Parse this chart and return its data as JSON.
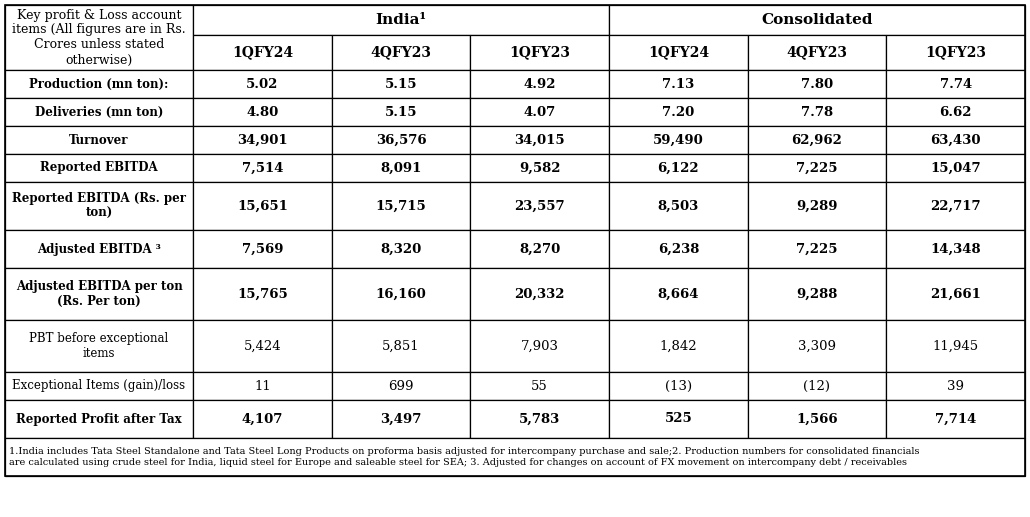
{
  "header_label": "Key profit & Loss account\nitems (All figures are in Rs.\nCrores unless stated\notherwise)",
  "india_header": "India¹",
  "consolidated_header": "Consolidated",
  "col_headers": [
    "1QFY24",
    "4QFY23",
    "1QFY23",
    "1QFY24",
    "4QFY23",
    "1QFY23"
  ],
  "rows": [
    {
      "label": "Production (mn ton):",
      "values": [
        "5.02",
        "5.15",
        "4.92",
        "7.13",
        "7.80",
        "7.74"
      ],
      "bold": true
    },
    {
      "label": "Deliveries (mn ton)",
      "values": [
        "4.80",
        "5.15",
        "4.07",
        "7.20",
        "7.78",
        "6.62"
      ],
      "bold": true
    },
    {
      "label": "Turnover",
      "values": [
        "34,901",
        "36,576",
        "34,015",
        "59,490",
        "62,962",
        "63,430"
      ],
      "bold": true
    },
    {
      "label": "Reported EBITDA",
      "values": [
        "7,514",
        "8,091",
        "9,582",
        "6,122",
        "7,225",
        "15,047"
      ],
      "bold": true
    },
    {
      "label": "Reported EBITDA (Rs. per\nton)",
      "values": [
        "15,651",
        "15,715",
        "23,557",
        "8,503",
        "9,289",
        "22,717"
      ],
      "bold": true
    },
    {
      "label": "Adjusted EBITDA ³",
      "values": [
        "7,569",
        "8,320",
        "8,270",
        "6,238",
        "7,225",
        "14,348"
      ],
      "bold": true
    },
    {
      "label": "Adjusted EBITDA per ton\n(Rs. Per ton)",
      "values": [
        "15,765",
        "16,160",
        "20,332",
        "8,664",
        "9,288",
        "21,661"
      ],
      "bold": true
    },
    {
      "label": "PBT before exceptional\nitems",
      "values": [
        "5,424",
        "5,851",
        "7,903",
        "1,842",
        "3,309",
        "11,945"
      ],
      "bold": false
    },
    {
      "label": "Exceptional Items (gain)/loss",
      "values": [
        "11",
        "699",
        "55",
        "(13)",
        "(12)",
        "39"
      ],
      "bold": false
    },
    {
      "label": "Reported Profit after Tax",
      "values": [
        "4,107",
        "3,497",
        "5,783",
        "525",
        "1,566",
        "7,714"
      ],
      "bold": true
    }
  ],
  "footnote_line1": "1.India includes Tata Steel Standalone and Tata Steel Long Products on proforma basis adjusted for intercompany purchase and sale;2. Production numbers for consolidated financials",
  "footnote_line2": "are calculated using crude steel for India, liquid steel for Europe and saleable steel for SEA; 3. Adjusted for changes on account of FX movement on intercompany debt / receivables",
  "bg_color": "#ffffff",
  "border_color": "#000000"
}
